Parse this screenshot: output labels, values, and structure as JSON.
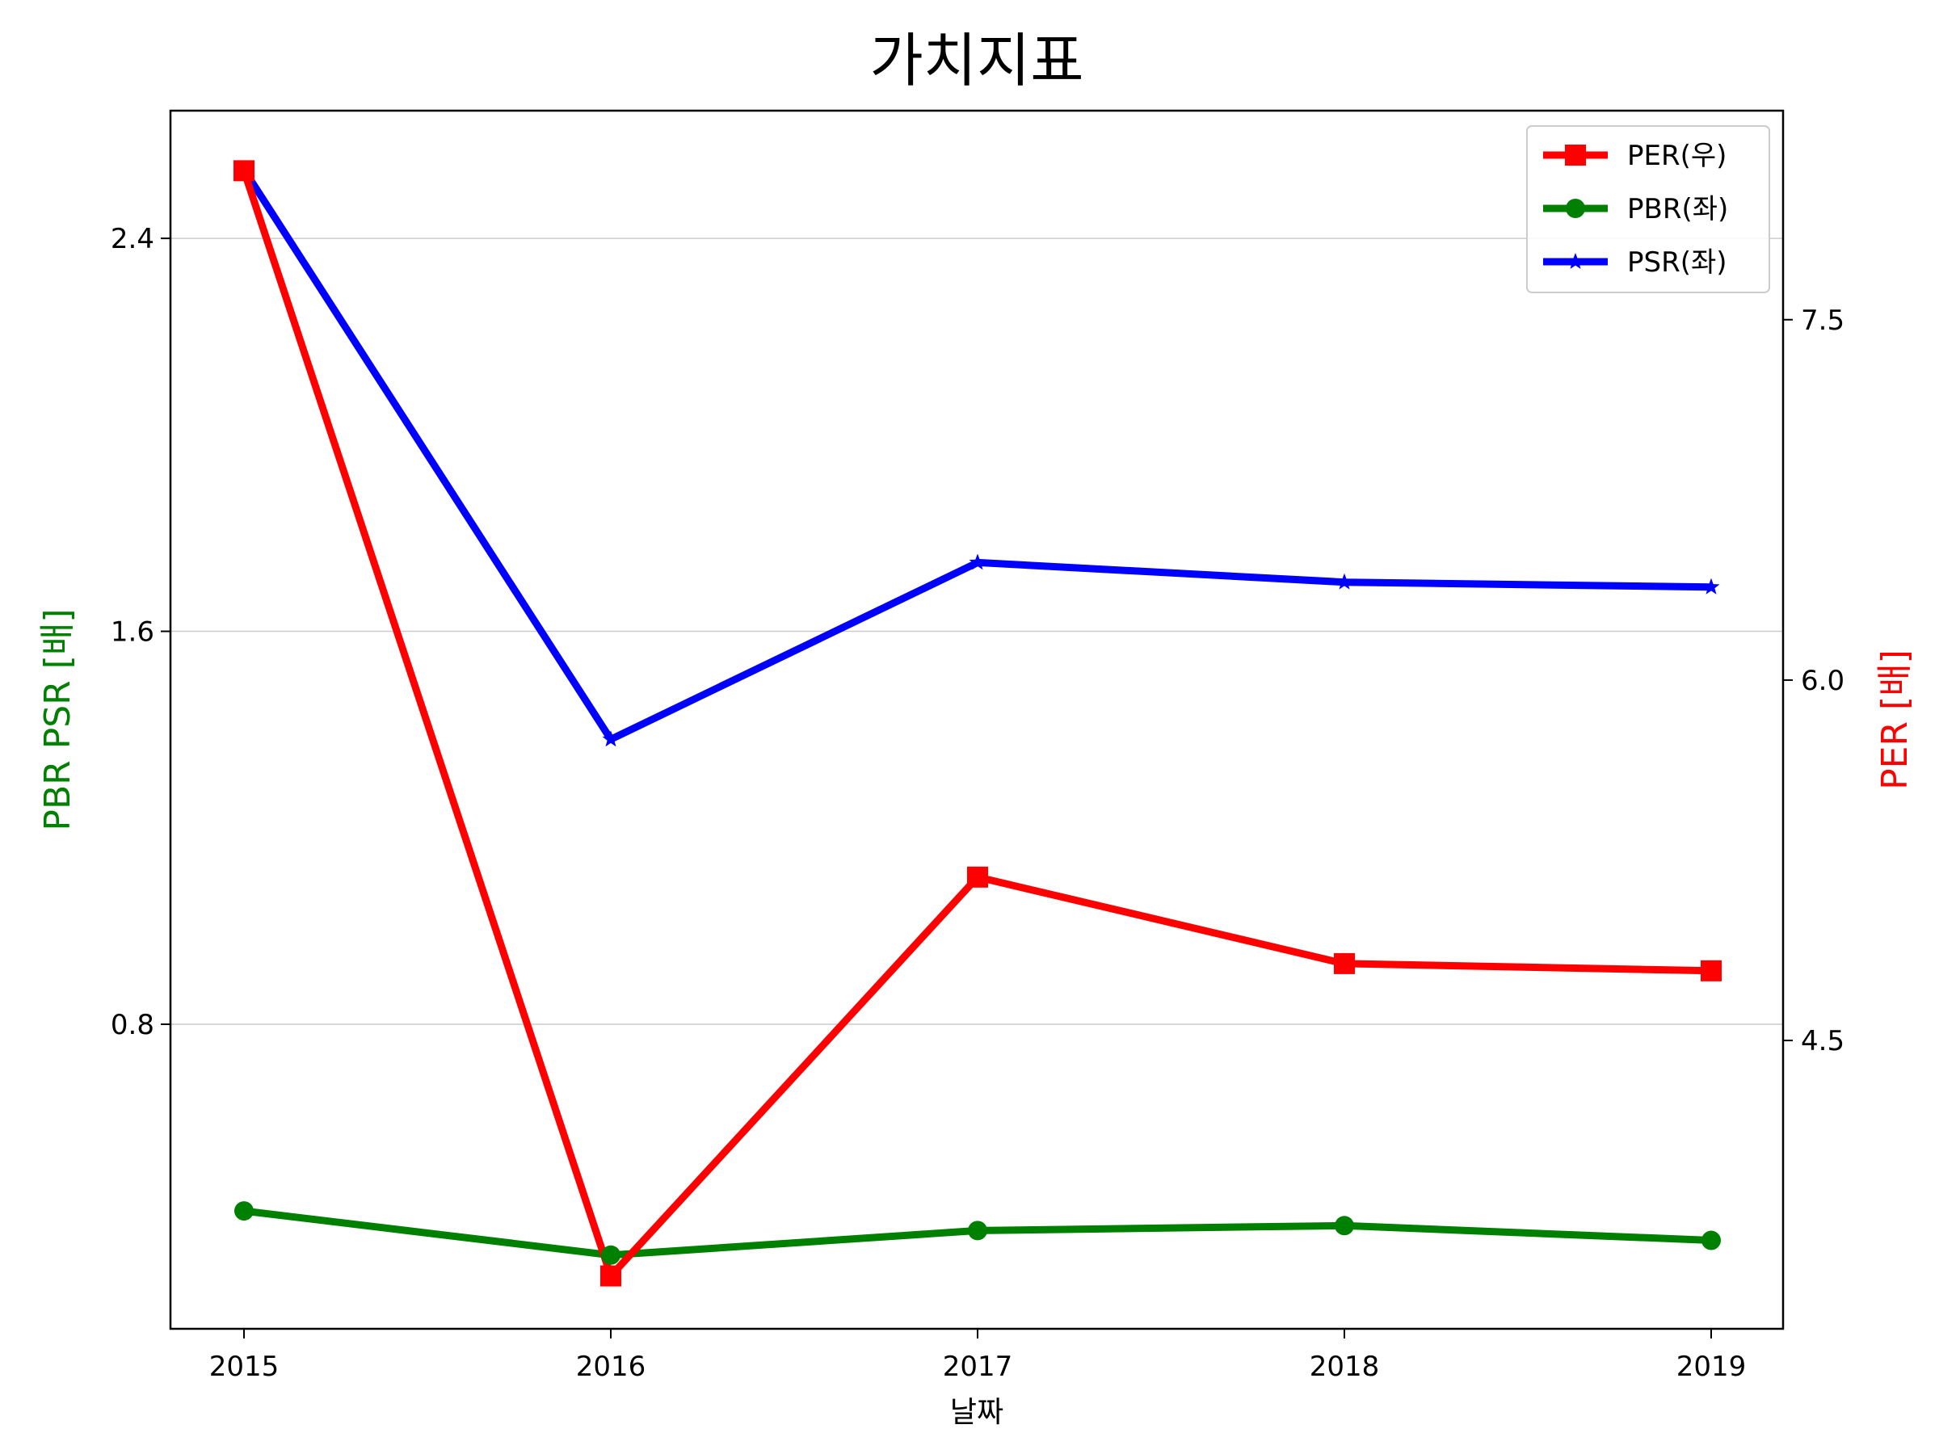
{
  "chart_data": {
    "type": "line",
    "title": "가치지표",
    "xlabel": "날짜",
    "ylabel_left": "PBR PSR [배]",
    "ylabel_right": "PER [배]",
    "categories": [
      "2015",
      "2016",
      "2017",
      "2018",
      "2019"
    ],
    "y_left": {
      "ylim": [
        0.18,
        2.66
      ],
      "ticks": [
        0.8,
        1.6,
        2.4
      ],
      "tick_labels": [
        "0.8",
        "1.6",
        "2.4"
      ]
    },
    "y_right": {
      "ylim": [
        3.3,
        8.37
      ],
      "ticks": [
        4.5,
        6.0,
        7.5
      ],
      "tick_labels": [
        "4.5",
        "6.0",
        "7.5"
      ]
    },
    "grid": "horizontal",
    "legend_position": "top-right",
    "series": [
      {
        "name": "PER(우)",
        "axis": "right",
        "color": "#ff0000",
        "marker": "square",
        "values": [
          8.12,
          3.52,
          5.18,
          4.82,
          4.79
        ]
      },
      {
        "name": "PBR(좌)",
        "axis": "left",
        "color": "#008000",
        "marker": "circle",
        "values": [
          0.42,
          0.33,
          0.38,
          0.39,
          0.36
        ]
      },
      {
        "name": "PSR(좌)",
        "axis": "left",
        "color": "#0000ff",
        "marker": "star",
        "values": [
          2.54,
          1.38,
          1.74,
          1.7,
          1.69
        ]
      }
    ]
  }
}
